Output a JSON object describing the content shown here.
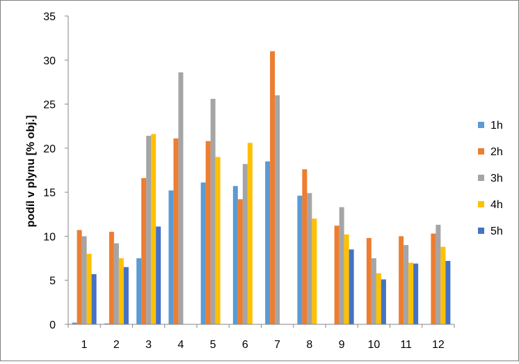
{
  "chart_data": {
    "type": "bar",
    "title": "",
    "xlabel": "",
    "ylabel": "podíl v plynu [% obj.]",
    "ylim": [
      0,
      35
    ],
    "yticks": [
      0,
      5,
      10,
      15,
      20,
      25,
      30,
      35
    ],
    "grid": false,
    "legend_position": "right",
    "categories": [
      "1",
      "2",
      "3",
      "4",
      "5",
      "6",
      "7",
      "8",
      "9",
      "10",
      "11",
      "12"
    ],
    "series": [
      {
        "name": "1h",
        "color": "#5b9bd5",
        "values": [
          0.2,
          0.1,
          7.5,
          15.2,
          16.1,
          15.7,
          18.5,
          14.6,
          0,
          0,
          0,
          0
        ]
      },
      {
        "name": "2h",
        "color": "#ed7d31",
        "values": [
          10.7,
          10.5,
          16.6,
          21.1,
          20.8,
          14.2,
          31.0,
          17.6,
          11.2,
          9.8,
          10.0,
          10.3
        ]
      },
      {
        "name": "3h",
        "color": "#a5a5a5",
        "values": [
          10.0,
          9.2,
          21.4,
          28.6,
          25.6,
          18.2,
          26.0,
          14.9,
          13.3,
          7.5,
          9.0,
          11.3
        ]
      },
      {
        "name": "4h",
        "color": "#ffc000",
        "values": [
          8.0,
          7.5,
          21.6,
          0,
          19.0,
          20.6,
          0,
          12.0,
          10.2,
          5.8,
          7.0,
          8.8
        ]
      },
      {
        "name": "5h",
        "color": "#4472c4",
        "values": [
          5.7,
          6.5,
          11.1,
          0,
          0,
          0,
          0,
          0,
          8.5,
          5.1,
          6.9,
          7.2
        ]
      }
    ]
  }
}
